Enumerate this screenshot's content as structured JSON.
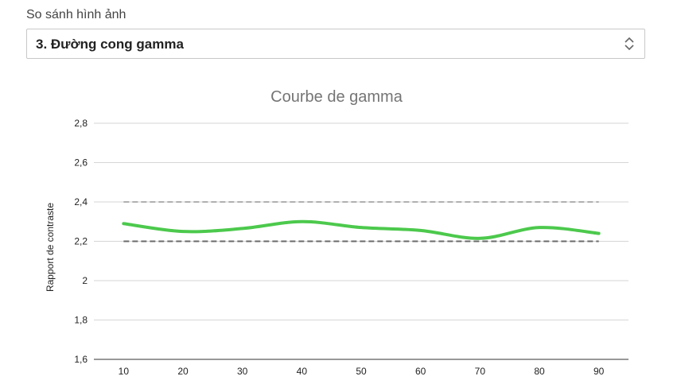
{
  "header": {
    "label": "So sánh hình ảnh"
  },
  "select": {
    "value": "3. Đường cong gamma"
  },
  "chart_data": {
    "type": "line",
    "title": "Courbe de gamma",
    "xlabel": "",
    "ylabel": "Rapport de contraste",
    "x": [
      10,
      20,
      30,
      40,
      50,
      60,
      70,
      80,
      90
    ],
    "xlim": [
      5,
      95
    ],
    "ylim": [
      1.6,
      2.8
    ],
    "yticks": [
      1.6,
      1.8,
      2.0,
      2.2,
      2.4,
      2.6,
      2.8
    ],
    "ytick_labels": [
      "1,6",
      "1,8",
      "2",
      "2,2",
      "2,4",
      "2,6",
      "2,8"
    ],
    "xtick_labels": [
      "10",
      "20",
      "30",
      "40",
      "50",
      "60",
      "70",
      "80",
      "90"
    ],
    "grid": true,
    "series": [
      {
        "values": [
          2.29,
          2.25,
          2.265,
          2.3,
          2.27,
          2.255,
          2.215,
          2.27,
          2.24
        ],
        "color": "#4cc94c",
        "style": "solid"
      }
    ],
    "reference_lines": [
      {
        "y": 2.4,
        "color": "#b0b0b0",
        "style": "dashed"
      },
      {
        "y": 2.2,
        "color": "#6a6a6a",
        "style": "dashed"
      }
    ]
  }
}
